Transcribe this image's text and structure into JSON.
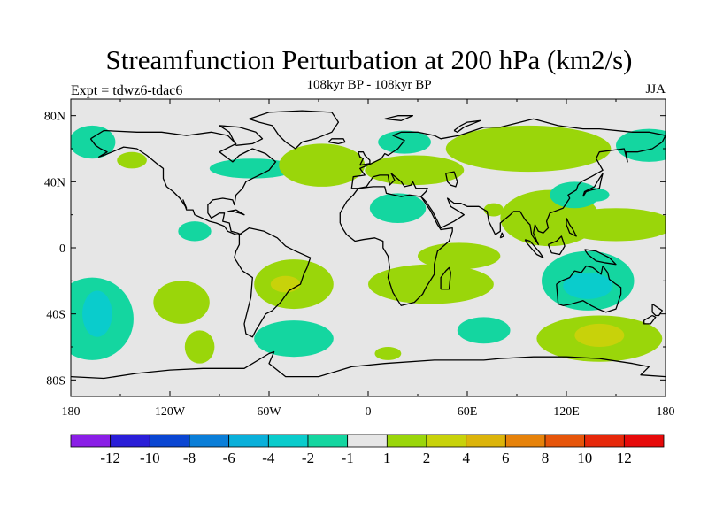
{
  "title": "Streamfunction Perturbation at 200 hPa (km2/s)",
  "left_subtitle": "Expt = tdwz6-tdac6",
  "center_subtitle": "108kyr BP - 108kyr BP",
  "right_subtitle": "JJA",
  "chart_data": {
    "type": "heatmap",
    "title": "Streamfunction Perturbation at 200 hPa (km2/s)",
    "variable": "Streamfunction Perturbation",
    "level": "200 hPa",
    "units": "km2/s",
    "projection": "cylindrical equidistant",
    "xlim": [
      -180,
      180
    ],
    "ylim": [
      -90,
      90
    ],
    "x_ticks": [
      -180,
      -120,
      -60,
      0,
      60,
      120,
      180
    ],
    "x_tick_labels": [
      "180",
      "120W",
      "60W",
      "0",
      "60E",
      "120E",
      "180"
    ],
    "y_ticks": [
      80,
      40,
      0,
      -40,
      -80
    ],
    "y_tick_labels": [
      "80N",
      "40N",
      "0",
      "40S",
      "80S"
    ],
    "background_color": "#e6e6e6",
    "colorbar": {
      "levels": [
        -12,
        -10,
        -8,
        -6,
        -4,
        -2,
        -1,
        1,
        2,
        4,
        6,
        8,
        10,
        12
      ],
      "labels": [
        "-12",
        "-10",
        "-8",
        "-6",
        "-4",
        "-2",
        "-1",
        "1",
        "2",
        "4",
        "6",
        "8",
        "10",
        "12"
      ],
      "colors": [
        "#8a1ee6",
        "#2a1ed8",
        "#0a46d2",
        "#0a7ed8",
        "#0ab0da",
        "#0acccc",
        "#14d6a0",
        "#e6e6e6",
        "#9ad60a",
        "#c8d20a",
        "#dcb40a",
        "#e6820a",
        "#e6550a",
        "#e6280a",
        "#e60a0a"
      ]
    },
    "regions": [
      {
        "label": "1 to 2",
        "lon": -143,
        "lat": 53,
        "rx": 9,
        "ry": 5
      },
      {
        "label": "-2 to -1",
        "lon": -167,
        "lat": 64,
        "rx": 14,
        "ry": 10
      },
      {
        "label": "-2 to -1",
        "lon": -70,
        "lat": 48,
        "rx": 26,
        "ry": 6
      },
      {
        "label": "1 to 2",
        "lon": -28,
        "lat": 50,
        "rx": 26,
        "ry": 13
      },
      {
        "label": "-2 to -1",
        "lon": 22,
        "lat": 64,
        "rx": 16,
        "ry": 7
      },
      {
        "label": "1 to 2",
        "lon": 28,
        "lat": 47,
        "rx": 30,
        "ry": 9
      },
      {
        "label": "1 to 2",
        "lon": 97,
        "lat": 60,
        "rx": 50,
        "ry": 14
      },
      {
        "label": "-2 to -1",
        "lon": 170,
        "lat": 62,
        "rx": 20,
        "ry": 10
      },
      {
        "label": "-2 to -1",
        "lon": 18,
        "lat": 24,
        "rx": 17,
        "ry": 9
      },
      {
        "label": "1 to 2",
        "lon": 110,
        "lat": 18,
        "rx": 30,
        "ry": 17
      },
      {
        "label": "1 to 2",
        "lon": 150,
        "lat": 14,
        "rx": 35,
        "ry": 10
      },
      {
        "label": "-2 to -1",
        "lon": 125,
        "lat": 32,
        "rx": 15,
        "ry": 8
      },
      {
        "label": "-2 to -1",
        "lon": 138,
        "lat": 32,
        "rx": 8,
        "ry": 4
      },
      {
        "label": "-2 to -1",
        "lon": -105,
        "lat": 10,
        "rx": 10,
        "ry": 6
      },
      {
        "label": "1 to 2",
        "lon": -45,
        "lat": -22,
        "rx": 24,
        "ry": 15
      },
      {
        "label": "2 to 4",
        "lon": -50,
        "lat": -22,
        "rx": 9,
        "ry": 5
      },
      {
        "label": "1 to 2",
        "lon": -113,
        "lat": -33,
        "rx": 17,
        "ry": 13
      },
      {
        "label": "-2 to -1",
        "lon": -167,
        "lat": -43,
        "rx": 25,
        "ry": 25
      },
      {
        "label": "-4 to -2",
        "lon": -164,
        "lat": -40,
        "rx": 9,
        "ry": 14
      },
      {
        "label": "1 to 2",
        "lon": -102,
        "lat": -60,
        "rx": 9,
        "ry": 10
      },
      {
        "label": "-2 to -1",
        "lon": -45,
        "lat": -55,
        "rx": 24,
        "ry": 11
      },
      {
        "label": "1 to 2",
        "lon": 38,
        "lat": -22,
        "rx": 38,
        "ry": 12
      },
      {
        "label": "1 to 2",
        "lon": 55,
        "lat": -5,
        "rx": 25,
        "ry": 8
      },
      {
        "label": "-2 to -1",
        "lon": 70,
        "lat": -50,
        "rx": 16,
        "ry": 8
      },
      {
        "label": "1 to 2",
        "lon": 12,
        "lat": -64,
        "rx": 8,
        "ry": 4
      },
      {
        "label": "-2 to -1",
        "lon": 133,
        "lat": -20,
        "rx": 28,
        "ry": 18
      },
      {
        "label": "-4 to -2",
        "lon": 133,
        "lat": -23,
        "rx": 15,
        "ry": 8
      },
      {
        "label": "1 to 2",
        "lon": 140,
        "lat": -55,
        "rx": 38,
        "ry": 14
      },
      {
        "label": "2 to 4",
        "lon": 140,
        "lat": -53,
        "rx": 15,
        "ry": 7
      },
      {
        "label": "1 to 2",
        "lon": 76,
        "lat": 23,
        "rx": 6,
        "ry": 4
      }
    ]
  }
}
